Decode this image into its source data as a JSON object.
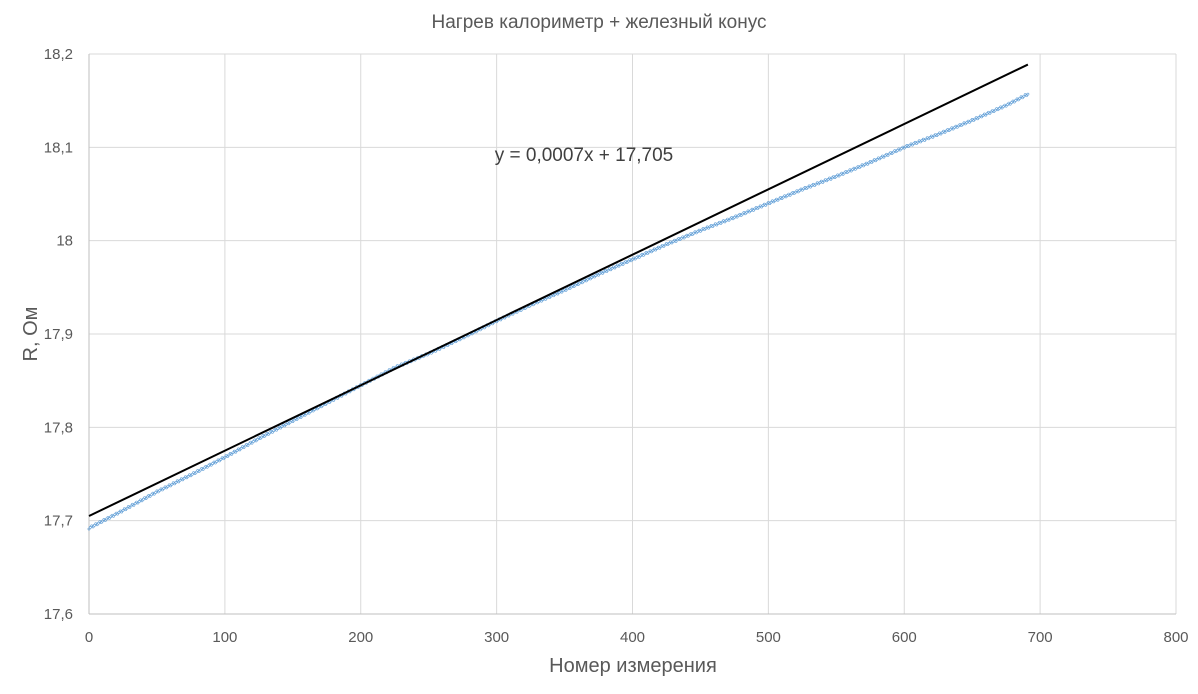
{
  "chart_data": {
    "type": "scatter",
    "title": "Нагрев калориметр + железный конус",
    "xlabel": "Номер измерения",
    "ylabel": "R, Ом",
    "xlim": [
      0,
      800
    ],
    "ylim": [
      17.6,
      18.2
    ],
    "x_ticks": [
      "0",
      "100",
      "200",
      "300",
      "400",
      "500",
      "600",
      "700",
      "800"
    ],
    "y_ticks": [
      "17,6",
      "17,7",
      "17,8",
      "17,9",
      "18",
      "18,1",
      "18,2"
    ],
    "grid": true,
    "legend": "none",
    "series": [
      {
        "color": "#5b9bd5",
        "marker": "small-dot",
        "x": [
          0,
          25,
          50,
          75,
          100,
          125,
          150,
          175,
          200,
          225,
          250,
          275,
          300,
          325,
          350,
          375,
          400,
          425,
          450,
          475,
          500,
          525,
          550,
          575,
          600,
          625,
          650,
          675,
          691
        ],
        "y": [
          17.692,
          17.711,
          17.731,
          17.749,
          17.768,
          17.788,
          17.807,
          17.826,
          17.845,
          17.864,
          17.879,
          17.896,
          17.914,
          17.931,
          17.947,
          17.964,
          17.98,
          17.996,
          18.011,
          18.025,
          18.04,
          18.055,
          18.069,
          18.084,
          18.1,
          18.114,
          18.129,
          18.145,
          18.157
        ]
      }
    ],
    "trendline": {
      "color": "#000000",
      "equation": "y = 0,0007x + 17,705",
      "slope": 0.0007,
      "intercept": 17.705,
      "x_range": [
        0,
        691
      ]
    }
  }
}
